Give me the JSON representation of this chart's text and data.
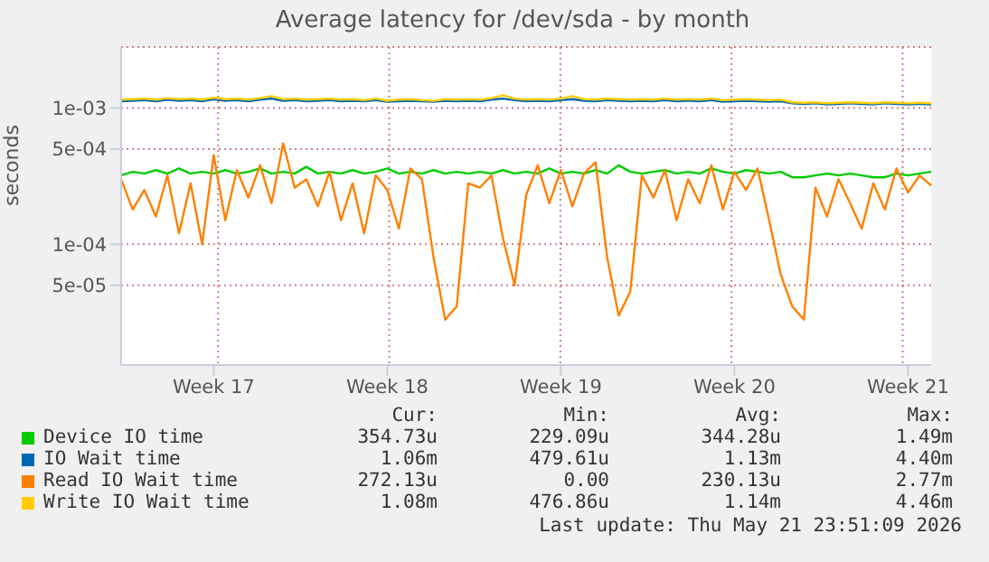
{
  "chart_data": {
    "type": "line",
    "title": "Average latency for /dev/sda - by month",
    "ylabel": "seconds",
    "log": true,
    "grid": true,
    "legend": "bottom",
    "marker": "none",
    "line_style": "solid",
    "categories": [
      null,
      null,
      null,
      null,
      null,
      null,
      null,
      null,
      "Week 17",
      null,
      null,
      null,
      null,
      null,
      null,
      null,
      null,
      null,
      null,
      null,
      null,
      null,
      null,
      "Week 18",
      null,
      null,
      null,
      null,
      null,
      null,
      null,
      null,
      null,
      null,
      null,
      null,
      null,
      null,
      "Week 19",
      null,
      null,
      null,
      null,
      null,
      null,
      null,
      null,
      null,
      null,
      null,
      null,
      null,
      null,
      "Week 20",
      null,
      null,
      null,
      null,
      null,
      null,
      null,
      null,
      null,
      null,
      null,
      null,
      null,
      null,
      "Week 21",
      null,
      null
    ],
    "series": [
      {
        "name": "Device IO time",
        "color": "#00cc00",
        "values": [
          0.00032,
          0.00034,
          0.00033,
          0.00035,
          0.00033,
          0.00036,
          0.00033,
          0.00034,
          0.00033,
          0.00035,
          0.00033,
          0.00034,
          0.00036,
          0.00033,
          0.00034,
          0.00033,
          0.00037,
          0.00033,
          0.00034,
          0.00033,
          0.00035,
          0.00033,
          0.00034,
          0.00036,
          0.00033,
          0.00034,
          0.00033,
          0.00035,
          0.00033,
          0.00034,
          0.00033,
          0.00034,
          0.00033,
          0.00035,
          0.00033,
          0.00034,
          0.00033,
          0.00036,
          0.00033,
          0.00034,
          0.00033,
          0.00035,
          0.00033,
          0.00038,
          0.00034,
          0.00033,
          0.00034,
          0.00035,
          0.00033,
          0.00034,
          0.00033,
          0.00036,
          0.00034,
          0.00033,
          0.00035,
          0.00034,
          0.00033,
          0.00034,
          0.00031,
          0.00031,
          0.00032,
          0.00033,
          0.00032,
          0.00033,
          0.00032,
          0.00031,
          0.00031,
          0.00033,
          0.00032,
          0.00033,
          0.00034
        ]
      },
      {
        "name": "IO Wait time",
        "color": "#0066b3",
        "values": [
          0.00112,
          0.00113,
          0.00114,
          0.00112,
          0.00115,
          0.00113,
          0.00114,
          0.00112,
          0.00116,
          0.00113,
          0.00114,
          0.00112,
          0.00115,
          0.00117,
          0.00113,
          0.00114,
          0.00112,
          0.00113,
          0.00114,
          0.00112,
          0.00113,
          0.00112,
          0.00114,
          0.00111,
          0.00112,
          0.00113,
          0.00112,
          0.00111,
          0.00113,
          0.00112,
          0.00113,
          0.00112,
          0.00115,
          0.00117,
          0.00114,
          0.00112,
          0.00113,
          0.00112,
          0.00114,
          0.00116,
          0.00113,
          0.00112,
          0.00114,
          0.00113,
          0.00112,
          0.00113,
          0.00112,
          0.00114,
          0.00112,
          0.00113,
          0.00112,
          0.00114,
          0.00111,
          0.00112,
          0.00113,
          0.00112,
          0.00111,
          0.00112,
          0.00108,
          0.00107,
          0.00108,
          0.00106,
          0.00107,
          0.00108,
          0.00107,
          0.00106,
          0.00108,
          0.00107,
          0.00106,
          0.00107,
          0.00106
        ]
      },
      {
        "name": "Read IO Wait time",
        "color": "#ff8000",
        "values": [
          0.0003,
          0.00018,
          0.00025,
          0.00016,
          0.00032,
          0.00012,
          0.00028,
          0.0001,
          0.00045,
          0.00015,
          0.00035,
          0.00022,
          0.00038,
          0.0002,
          0.00055,
          0.00026,
          0.0003,
          0.00019,
          0.00034,
          0.00015,
          0.00028,
          0.00012,
          0.00032,
          0.00025,
          0.00013,
          0.00036,
          0.0003,
          8e-05,
          2.8e-05,
          3.5e-05,
          0.00028,
          0.00026,
          0.00032,
          0.00011,
          5e-05,
          0.00023,
          0.00038,
          0.0002,
          0.00035,
          0.00019,
          0.00033,
          0.0004,
          8e-05,
          3e-05,
          4.5e-05,
          0.00032,
          0.00022,
          0.00035,
          0.00015,
          0.0003,
          0.0002,
          0.00038,
          0.00018,
          0.00034,
          0.00025,
          0.00036,
          0.00015,
          6e-05,
          3.5e-05,
          2.8e-05,
          0.00026,
          0.00016,
          0.0003,
          0.0002,
          0.00013,
          0.00028,
          0.00018,
          0.00036,
          0.00024,
          0.00032,
          0.00027
        ]
      },
      {
        "name": "Write IO Wait time",
        "color": "#ffcc00",
        "values": [
          0.00115,
          0.00116,
          0.00117,
          0.00115,
          0.00118,
          0.00116,
          0.00117,
          0.00115,
          0.00119,
          0.00116,
          0.00117,
          0.00115,
          0.00118,
          0.00122,
          0.00116,
          0.00117,
          0.00115,
          0.00116,
          0.00117,
          0.00115,
          0.00116,
          0.00114,
          0.00117,
          0.00113,
          0.00115,
          0.00116,
          0.00114,
          0.00113,
          0.00116,
          0.00115,
          0.00116,
          0.00115,
          0.00118,
          0.00124,
          0.00117,
          0.00115,
          0.00116,
          0.00115,
          0.00117,
          0.00122,
          0.00116,
          0.00115,
          0.00117,
          0.00116,
          0.00115,
          0.00116,
          0.00115,
          0.00117,
          0.00115,
          0.00116,
          0.00115,
          0.00117,
          0.00114,
          0.00115,
          0.00116,
          0.00115,
          0.00114,
          0.00115,
          0.0011,
          0.00109,
          0.0011,
          0.00108,
          0.00109,
          0.0011,
          0.00109,
          0.00108,
          0.0011,
          0.00109,
          0.00108,
          0.00109,
          0.00108
        ]
      }
    ],
    "ylim": [
      1.3e-05,
      0.0028
    ],
    "yticks": [
      {
        "value": 5e-05,
        "label": "5e-05"
      },
      {
        "value": 0.0001,
        "label": "1e-04"
      },
      {
        "value": 0.0005,
        "label": "5e-04"
      },
      {
        "value": 0.001,
        "label": "1e-03"
      }
    ],
    "annotations": [
      "Cur:",
      "Min:",
      "Avg:",
      "Max:",
      "354.73u",
      "229.09u",
      "344.28u",
      "1.49m",
      "1.06m",
      "479.61u",
      "1.13m",
      "4.40m",
      "272.13u",
      "0.00",
      "230.13u",
      "2.77m",
      "1.08m",
      "476.86u",
      "1.14m",
      "4.46m",
      "Last update: Thu May 21 23:51:09 2026"
    ]
  }
}
